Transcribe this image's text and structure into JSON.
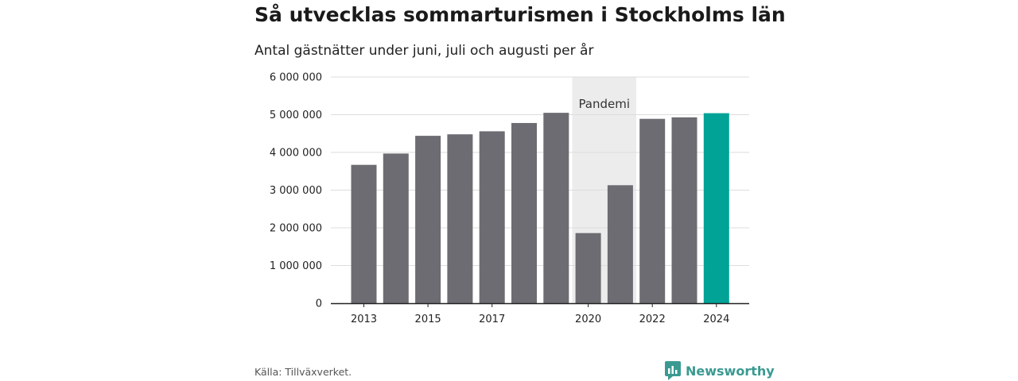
{
  "header": {
    "title": "Så utvecklas sommarturismen i Stockholms län",
    "subtitle": "Antal gästnätter under juni, juli och augusti per år"
  },
  "footer": {
    "source": "Källa: Tillväxverket.",
    "brand": "Newsworthy",
    "brand_color": "#3a9a91"
  },
  "chart_data": {
    "type": "bar",
    "categories": [
      "2013",
      "2014",
      "2015",
      "2016",
      "2017",
      "2018",
      "2019",
      "2020",
      "2021",
      "2022",
      "2023",
      "2024"
    ],
    "values": [
      3670000,
      3970000,
      4440000,
      4480000,
      4560000,
      4780000,
      5050000,
      1860000,
      3130000,
      4890000,
      4930000,
      5040000
    ],
    "x_tick_labels": [
      "2013",
      "2015",
      "2017",
      "2020",
      "2022",
      "2024"
    ],
    "y_ticks": [
      0,
      1000000,
      2000000,
      3000000,
      4000000,
      5000000,
      6000000
    ],
    "y_tick_labels": [
      "0",
      "1 000 000",
      "2 000 000",
      "3 000 000",
      "4 000 000",
      "5 000 000",
      "6 000 000"
    ],
    "ylim": [
      0,
      6000000
    ],
    "grid": true,
    "bar_color": "#6d6c72",
    "highlight": {
      "category": "2024",
      "color": "#00a396"
    },
    "annotation": {
      "label": "Pandemi",
      "from": "2020",
      "to": "2021",
      "color": "#ececec"
    }
  }
}
